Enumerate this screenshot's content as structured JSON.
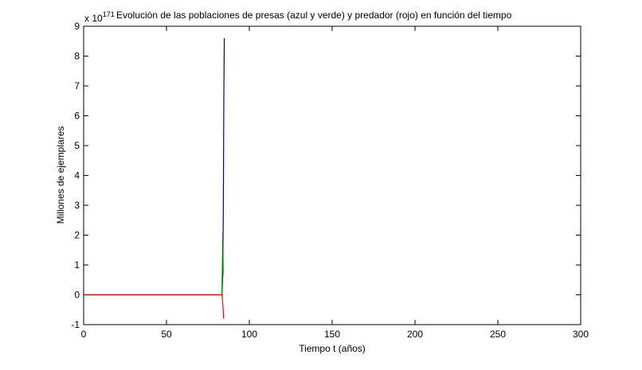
{
  "chart_data": {
    "type": "line",
    "title": "Evolución de las poblaciones de presas (azul y verde) y predador (rojo) en función del tiempo",
    "exponent_label": "x 10",
    "exponent": "171",
    "xlabel": "Tiempo t (años)",
    "ylabel": "Millones de ejemplares",
    "xlim": [
      0,
      300
    ],
    "ylim": [
      -1,
      9
    ],
    "xticks": [
      "0",
      "50",
      "100",
      "150",
      "200",
      "250",
      "300"
    ],
    "yticks": [
      "-1",
      "0",
      "1",
      "2",
      "3",
      "4",
      "5",
      "6",
      "7",
      "8",
      "9"
    ],
    "grid": false,
    "series": [
      {
        "color": "#0000a0",
        "points": [
          [
            0,
            0
          ],
          [
            83.5,
            0
          ],
          [
            84,
            0.7
          ],
          [
            84.3,
            2.8
          ],
          [
            84.6,
            6.5
          ],
          [
            84.9,
            8.6
          ]
        ]
      },
      {
        "color": "#008000",
        "points": [
          [
            0,
            0
          ],
          [
            83.5,
            0
          ],
          [
            84,
            2.1
          ],
          [
            84.2,
            0.7
          ]
        ]
      },
      {
        "color": "#ff0000",
        "points": [
          [
            0,
            0
          ],
          [
            83.5,
            0
          ],
          [
            84,
            -0.3
          ],
          [
            84.5,
            -0.8
          ]
        ]
      }
    ]
  }
}
